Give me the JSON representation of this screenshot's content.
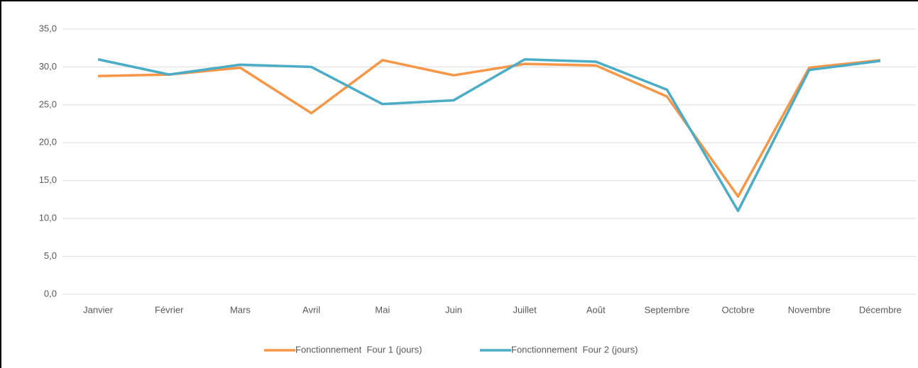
{
  "chart_data": {
    "type": "line",
    "categories": [
      "Janvier",
      "Février",
      "Mars",
      "Avril",
      "Mai",
      "Juin",
      "Juillet",
      "Août",
      "Septembre",
      "Octobre",
      "Novembre",
      "Décembre"
    ],
    "series": [
      {
        "name": "Fonctionnement  Four 1 (jours)",
        "color": "#f79646",
        "values": [
          28.8,
          29.0,
          29.9,
          23.9,
          30.9,
          28.9,
          30.4,
          30.2,
          26.1,
          12.9,
          29.9,
          30.9
        ]
      },
      {
        "name": "Fonctionnement  Four 2 (jours)",
        "color": "#4bacc6",
        "values": [
          31.0,
          29.0,
          30.3,
          30.0,
          25.1,
          25.6,
          31.0,
          30.7,
          27.0,
          11.0,
          29.6,
          30.8
        ]
      }
    ],
    "ylim": [
      0,
      35
    ],
    "yticks": [
      {
        "value": 0,
        "label": "0,0"
      },
      {
        "value": 5,
        "label": "5,0"
      },
      {
        "value": 10,
        "label": "10,0"
      },
      {
        "value": 15,
        "label": "15,0"
      },
      {
        "value": 20,
        "label": "20,0"
      },
      {
        "value": 25,
        "label": "25,0"
      },
      {
        "value": 30,
        "label": "30,0"
      },
      {
        "value": 35,
        "label": "35,0"
      }
    ],
    "grid": true,
    "legend": "bottom"
  }
}
